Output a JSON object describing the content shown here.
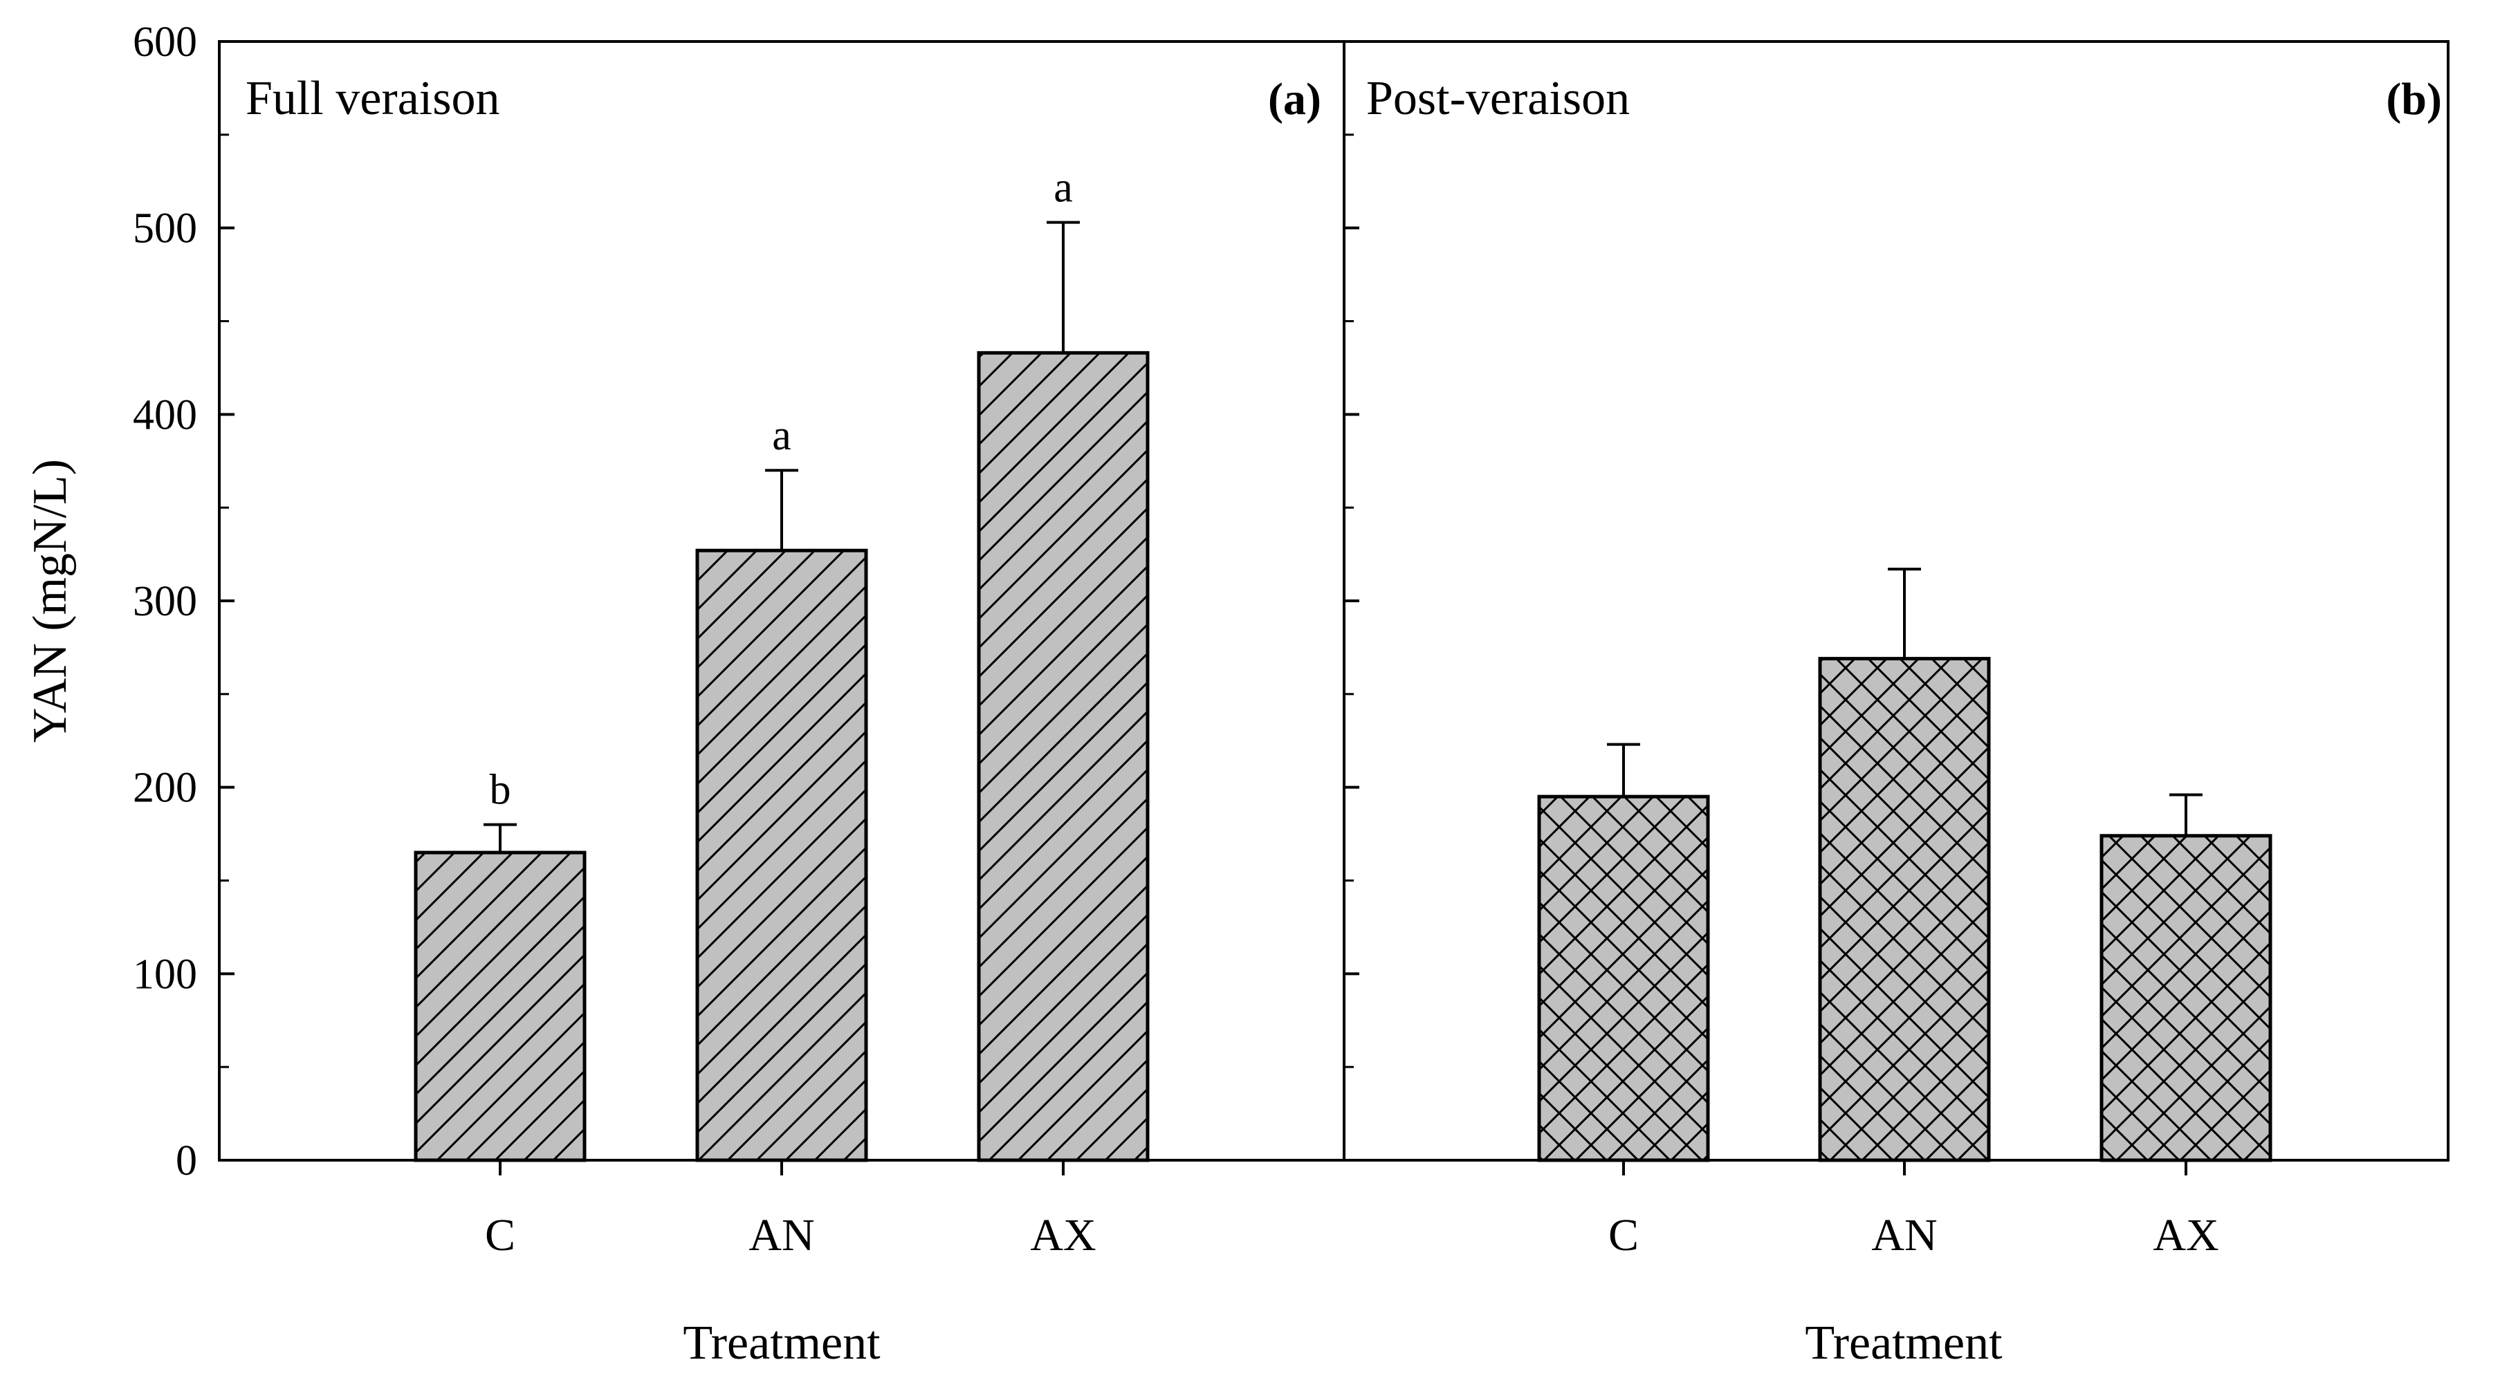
{
  "chart_data": {
    "type": "bar",
    "ylabel": "YAN (mgN/L)",
    "ylim": [
      0,
      600
    ],
    "yticks": [
      "0",
      "100",
      "200",
      "300",
      "400",
      "500",
      "600"
    ],
    "xlabel": "Treatment",
    "legend": "none",
    "panels": [
      {
        "title": "Full veraison",
        "tag": "(a)",
        "categories": [
          "C",
          "AN",
          "AX"
        ],
        "values": [
          165,
          327,
          433
        ],
        "errors": [
          15,
          43,
          70
        ],
        "significance": [
          "b",
          "a",
          "a"
        ],
        "pattern": "diagonal"
      },
      {
        "title": "Post-veraison",
        "tag": "(b)",
        "categories": [
          "C",
          "AN",
          "AX"
        ],
        "values": [
          195,
          269,
          174
        ],
        "errors": [
          28,
          48,
          22
        ],
        "significance": [
          "",
          "",
          ""
        ],
        "pattern": "crosshatch"
      }
    ]
  },
  "colors": {
    "bar_fill": "#c0c0c0",
    "stroke": "#000000",
    "background": "#ffffff"
  }
}
